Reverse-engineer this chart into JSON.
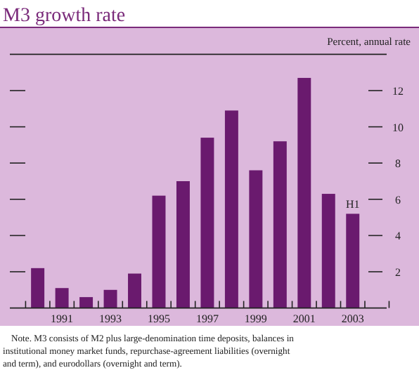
{
  "chart_data": {
    "type": "bar",
    "title": "M3 growth rate",
    "ylabel": "Percent, annual rate",
    "categories": [
      null,
      "1991",
      null,
      "1993",
      null,
      "1995",
      null,
      "1997",
      null,
      "1999",
      null,
      "2001",
      null,
      "2003"
    ],
    "values": [
      2.2,
      1.1,
      0.6,
      1.0,
      1.9,
      6.2,
      7.0,
      9.4,
      10.9,
      7.6,
      9.2,
      12.7,
      6.3,
      5.2
    ],
    "color": "#6a1a6e",
    "ylim": [
      0,
      14
    ],
    "yticks": [
      2,
      4,
      6,
      8,
      10,
      12
    ],
    "grid": false,
    "annotations": [
      {
        "text": "H1",
        "x": "2003",
        "y": 5.2
      },
      "Note. M3 consists of M2 plus large-denomination time deposits, balances in institutional money market funds, repurchase-agreement liabilities (overnight and term), and eurodollars (overnight and term)."
    ]
  }
}
